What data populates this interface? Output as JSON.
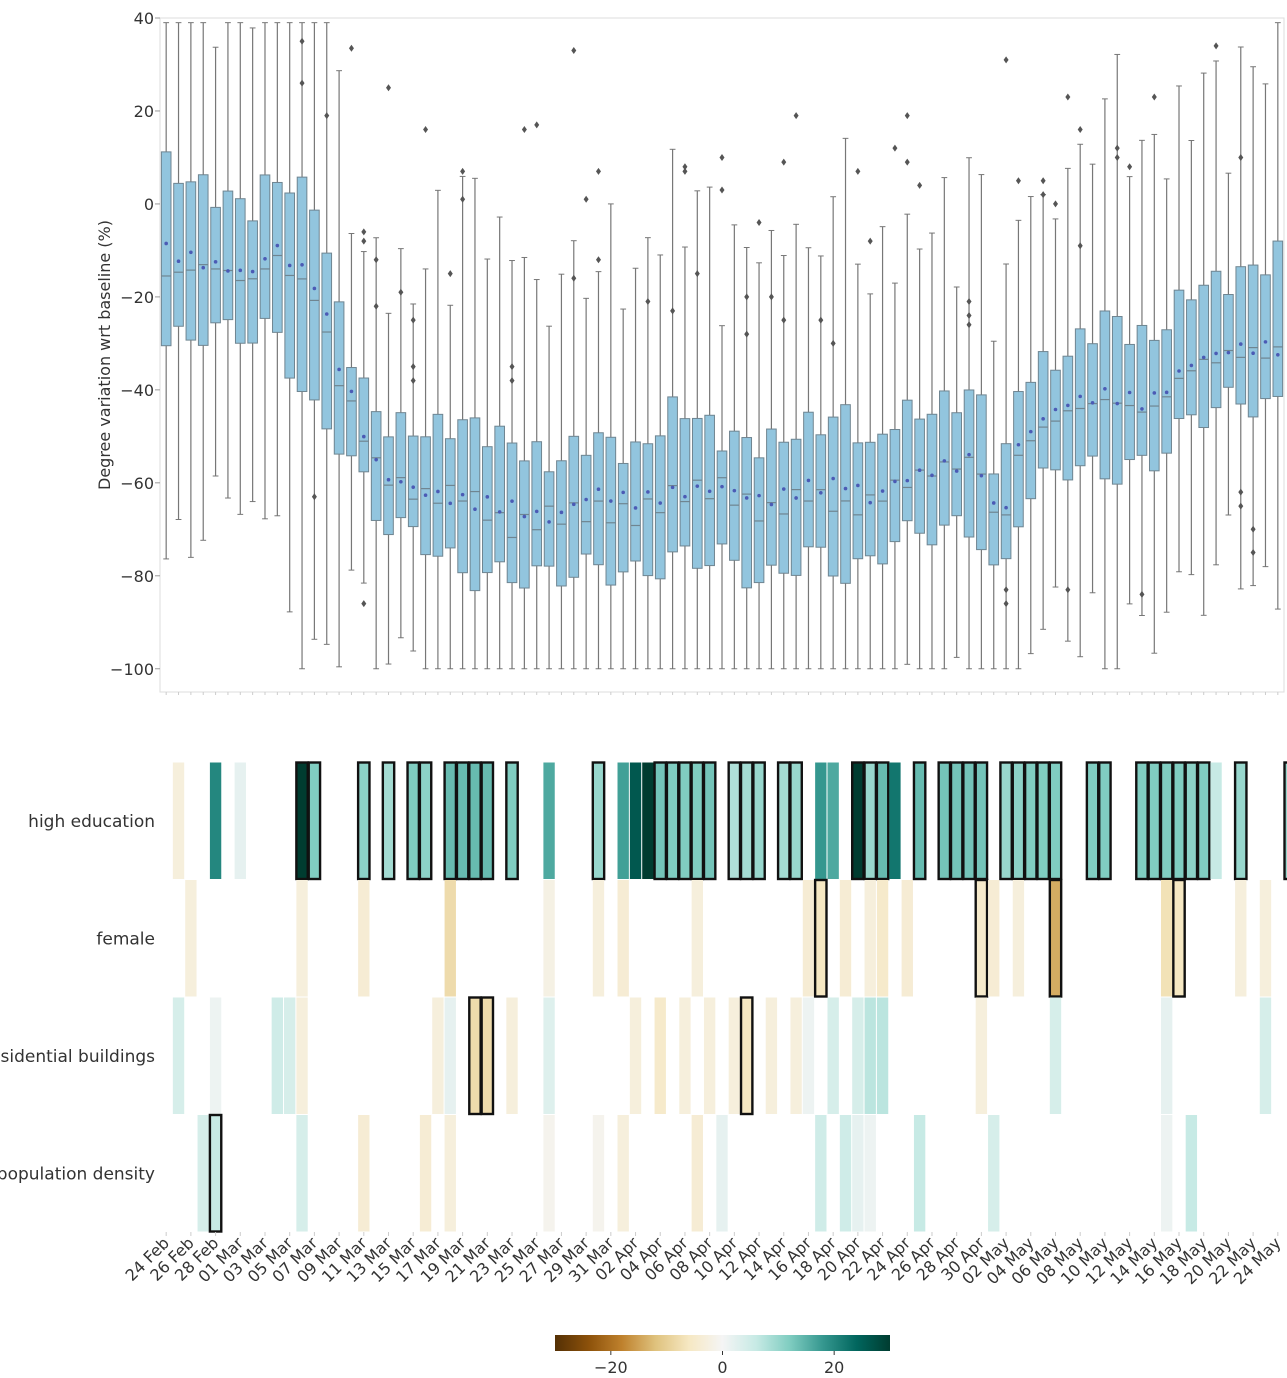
{
  "chart_data": [
    {
      "type": "box",
      "ylabel": "Degree variation wrt baseline (%)",
      "ylim": [
        -105,
        40
      ],
      "yticks": [
        40,
        20,
        0,
        -20,
        -40,
        -60,
        -80,
        -100
      ],
      "n_days": 91,
      "series_color": "#92c5de",
      "mean_marker_color": "#4b5bb5",
      "anchors": [
        [
          0,
          -28.5,
          -15.5,
          6,
          -10
        ],
        [
          4,
          -25,
          -13,
          1,
          -13
        ],
        [
          8,
          -26,
          -17,
          -3,
          -15
        ],
        [
          10,
          -25,
          -11,
          4,
          -9
        ],
        [
          14,
          -44,
          -20,
          -1,
          -17
        ],
        [
          16,
          -48,
          -37,
          -24,
          -33
        ],
        [
          18,
          -56,
          -47,
          -39,
          -46
        ],
        [
          20,
          -66,
          -58,
          -49,
          -58
        ],
        [
          24,
          -70,
          -63,
          -51,
          -62
        ],
        [
          28,
          -78,
          -62,
          -49,
          -64
        ],
        [
          32,
          -78,
          -70,
          -53,
          -65
        ],
        [
          36,
          -78,
          -67,
          -58,
          -68
        ],
        [
          40,
          -76,
          -66,
          -52,
          -62
        ],
        [
          44,
          -78,
          -67,
          -56,
          -64
        ],
        [
          48,
          -74,
          -62,
          -45,
          -62
        ],
        [
          52,
          -74,
          -61,
          -52,
          -61
        ],
        [
          56,
          -80,
          -67,
          -54,
          -64
        ],
        [
          60,
          -73,
          -62,
          -50,
          -61
        ],
        [
          64,
          -78,
          -66,
          -47,
          -60
        ],
        [
          66,
          -75,
          -64,
          -56,
          -64
        ],
        [
          68,
          -70,
          -61,
          -48,
          -60
        ],
        [
          72,
          -68,
          -57,
          -46,
          -57
        ],
        [
          76,
          -68,
          -55,
          -42,
          -55
        ],
        [
          78,
          -82,
          -72,
          -63,
          -70
        ],
        [
          80,
          -62,
          -52,
          -39,
          -50
        ],
        [
          84,
          -54,
          -45,
          -35,
          -43
        ],
        [
          88,
          -56,
          -42,
          -26,
          -41
        ],
        [
          92,
          -54,
          -45,
          -32,
          -43
        ],
        [
          96,
          -44,
          -35,
          -20,
          -34
        ],
        [
          100,
          -40,
          -32,
          -18,
          -31
        ],
        [
          104,
          -42,
          -32,
          -13,
          -31
        ]
      ],
      "outliers": [
        [
          13,
          26
        ],
        [
          13,
          35
        ],
        [
          14,
          -63
        ],
        [
          15,
          19
        ],
        [
          17,
          33.5
        ],
        [
          18,
          -86
        ],
        [
          18,
          -8
        ],
        [
          19,
          -6
        ],
        [
          20,
          -12
        ],
        [
          20,
          -22
        ],
        [
          21,
          25
        ],
        [
          22,
          -19
        ],
        [
          23,
          -25
        ],
        [
          23,
          -35
        ],
        [
          23,
          -38
        ],
        [
          24,
          16
        ],
        [
          26,
          -15
        ],
        [
          28,
          7
        ],
        [
          28,
          1
        ],
        [
          32,
          -35
        ],
        [
          32,
          -38
        ],
        [
          34,
          16
        ],
        [
          35,
          17
        ],
        [
          38,
          33
        ],
        [
          38,
          -16
        ],
        [
          39,
          1
        ],
        [
          41,
          7
        ],
        [
          41,
          -12
        ],
        [
          45,
          -21
        ],
        [
          47,
          -23
        ],
        [
          48,
          7
        ],
        [
          49,
          8
        ],
        [
          50,
          -15
        ],
        [
          52,
          10
        ],
        [
          52,
          3
        ],
        [
          54,
          -20
        ],
        [
          54,
          -28
        ],
        [
          56,
          -4
        ],
        [
          57,
          -20
        ],
        [
          58,
          9
        ],
        [
          58,
          -25
        ],
        [
          59,
          19
        ],
        [
          61,
          -25
        ],
        [
          62,
          -30
        ],
        [
          65,
          7
        ],
        [
          66,
          -8
        ],
        [
          68,
          12
        ],
        [
          69,
          9
        ],
        [
          69,
          19
        ],
        [
          71,
          4
        ],
        [
          75,
          -21
        ],
        [
          75,
          -24
        ],
        [
          75,
          -26
        ],
        [
          78,
          -83
        ],
        [
          78,
          -86
        ],
        [
          79,
          31
        ],
        [
          80,
          5
        ],
        [
          82,
          5
        ],
        [
          82,
          2
        ],
        [
          83,
          0
        ],
        [
          84,
          23
        ],
        [
          84,
          -83
        ],
        [
          85,
          16
        ],
        [
          86,
          -9
        ],
        [
          89,
          10
        ],
        [
          89,
          12
        ],
        [
          90,
          8
        ],
        [
          91,
          -84
        ],
        [
          92,
          23
        ],
        [
          98,
          34
        ],
        [
          100,
          -62
        ],
        [
          100,
          -65
        ],
        [
          101,
          10
        ],
        [
          102,
          -70
        ],
        [
          102,
          -75
        ]
      ]
    },
    {
      "type": "heatmap",
      "colorbar": {
        "ticks": [
          -20,
          0,
          20
        ],
        "tick_labels": [
          "−20",
          "0",
          "20"
        ],
        "range": [
          -30,
          30
        ],
        "cmap": "BrBG"
      },
      "rows": [
        "high education",
        "female",
        "residential buildings",
        "population density"
      ],
      "date_labels": [
        "24 Feb",
        "26 Feb",
        "28 Feb",
        "01 Mar",
        "03 Mar",
        "05 Mar",
        "07 Mar",
        "09 Mar",
        "11 Mar",
        "13 Mar",
        "15 Mar",
        "17 Mar",
        "19 Mar",
        "21 Mar",
        "23 Mar",
        "25 Mar",
        "27 Mar",
        "29 Mar",
        "31 Mar",
        "02 Apr",
        "04 Apr",
        "06 Apr",
        "08 Apr",
        "10 Apr",
        "12 Apr",
        "14 Apr",
        "16 Apr",
        "18 Apr",
        "20 Apr",
        "22 Apr",
        "24 Apr",
        "26 Apr",
        "28 Apr",
        "30 Apr",
        "02 May",
        "04 May",
        "06 May",
        "08 May",
        "10 May",
        "12 May",
        "14 May",
        "16 May",
        "18 May",
        "20 May",
        "22 May",
        "24 May"
      ],
      "cells": {
        "high education": [
          [
            1,
            -3
          ],
          [
            4,
            20,
            0
          ],
          [
            6,
            2
          ],
          [
            11,
            30,
            1
          ],
          [
            12,
            12,
            1
          ],
          [
            16,
            11,
            1
          ],
          [
            18,
            9,
            1
          ],
          [
            20,
            12,
            1
          ],
          [
            21,
            11,
            1
          ],
          [
            23,
            14,
            1
          ],
          [
            24,
            14,
            1
          ],
          [
            25,
            14,
            1
          ],
          [
            26,
            14,
            1
          ],
          [
            28,
            12,
            1
          ],
          [
            31,
            16
          ],
          [
            35,
            10,
            1
          ],
          [
            37,
            17
          ],
          [
            38,
            26
          ],
          [
            39,
            30
          ],
          [
            40,
            13,
            1
          ],
          [
            41,
            12,
            1
          ],
          [
            42,
            12,
            1
          ],
          [
            43,
            12,
            1
          ],
          [
            44,
            13,
            1
          ],
          [
            46,
            8,
            1
          ],
          [
            47,
            9,
            1
          ],
          [
            48,
            10,
            1
          ],
          [
            50,
            9,
            1
          ],
          [
            51,
            10,
            1
          ],
          [
            53,
            18
          ],
          [
            54,
            16
          ],
          [
            56,
            38,
            1
          ],
          [
            57,
            10,
            1
          ],
          [
            58,
            14,
            1
          ],
          [
            59,
            22
          ],
          [
            61,
            14,
            1
          ],
          [
            63,
            13,
            1
          ],
          [
            64,
            13,
            1
          ],
          [
            65,
            13,
            1
          ],
          [
            66,
            13,
            1
          ],
          [
            68,
            10,
            1
          ],
          [
            69,
            11,
            1
          ],
          [
            70,
            12,
            1
          ],
          [
            71,
            12,
            1
          ],
          [
            72,
            12,
            1
          ],
          [
            75,
            12,
            1
          ],
          [
            76,
            12,
            1
          ],
          [
            79,
            12,
            1
          ],
          [
            80,
            12,
            1
          ],
          [
            81,
            12,
            1
          ],
          [
            82,
            12,
            1
          ],
          [
            83,
            11,
            1
          ],
          [
            84,
            12,
            1
          ],
          [
            85,
            6
          ],
          [
            87,
            10,
            1
          ],
          [
            91,
            10,
            1
          ]
        ],
        "female": [
          [
            2,
            -3
          ],
          [
            11,
            -3
          ],
          [
            16,
            -4
          ],
          [
            23,
            -8
          ],
          [
            31,
            -2
          ],
          [
            35,
            -3
          ],
          [
            37,
            -4
          ],
          [
            43,
            -3
          ],
          [
            52,
            -4
          ],
          [
            53,
            -6,
            1
          ],
          [
            55,
            -4
          ],
          [
            57,
            -3
          ],
          [
            58,
            -5
          ],
          [
            60,
            -4
          ],
          [
            66,
            -5,
            1
          ],
          [
            67,
            -4
          ],
          [
            69,
            -3
          ],
          [
            72,
            -14,
            1
          ],
          [
            81,
            -7
          ],
          [
            82,
            -6,
            1
          ],
          [
            87,
            -3
          ],
          [
            89,
            -3
          ]
        ],
        "residential buildings": [
          [
            1,
            4
          ],
          [
            4,
            1
          ],
          [
            9,
            5
          ],
          [
            10,
            4
          ],
          [
            11,
            -3
          ],
          [
            22,
            -3
          ],
          [
            23,
            2
          ],
          [
            25,
            -8,
            1
          ],
          [
            26,
            -8,
            1
          ],
          [
            28,
            -3
          ],
          [
            31,
            3
          ],
          [
            38,
            -3
          ],
          [
            40,
            -5
          ],
          [
            42,
            -3
          ],
          [
            44,
            -3
          ],
          [
            46,
            -3
          ],
          [
            47,
            -6,
            1
          ],
          [
            49,
            -3
          ],
          [
            51,
            -3
          ],
          [
            52,
            1
          ],
          [
            54,
            4
          ],
          [
            56,
            4
          ],
          [
            57,
            7
          ],
          [
            58,
            7
          ],
          [
            66,
            -3
          ],
          [
            72,
            4
          ],
          [
            81,
            2
          ],
          [
            89,
            4
          ]
        ],
        "population density": [
          [
            3,
            4
          ],
          [
            4,
            6,
            1
          ],
          [
            11,
            4
          ],
          [
            16,
            -4
          ],
          [
            21,
            -4
          ],
          [
            23,
            -3
          ],
          [
            31,
            -1
          ],
          [
            35,
            -1
          ],
          [
            37,
            -3
          ],
          [
            43,
            -4
          ],
          [
            45,
            2
          ],
          [
            53,
            5
          ],
          [
            55,
            5
          ],
          [
            56,
            2
          ],
          [
            57,
            1
          ],
          [
            61,
            6
          ],
          [
            67,
            4
          ],
          [
            81,
            1
          ],
          [
            83,
            6
          ]
        ]
      }
    }
  ]
}
